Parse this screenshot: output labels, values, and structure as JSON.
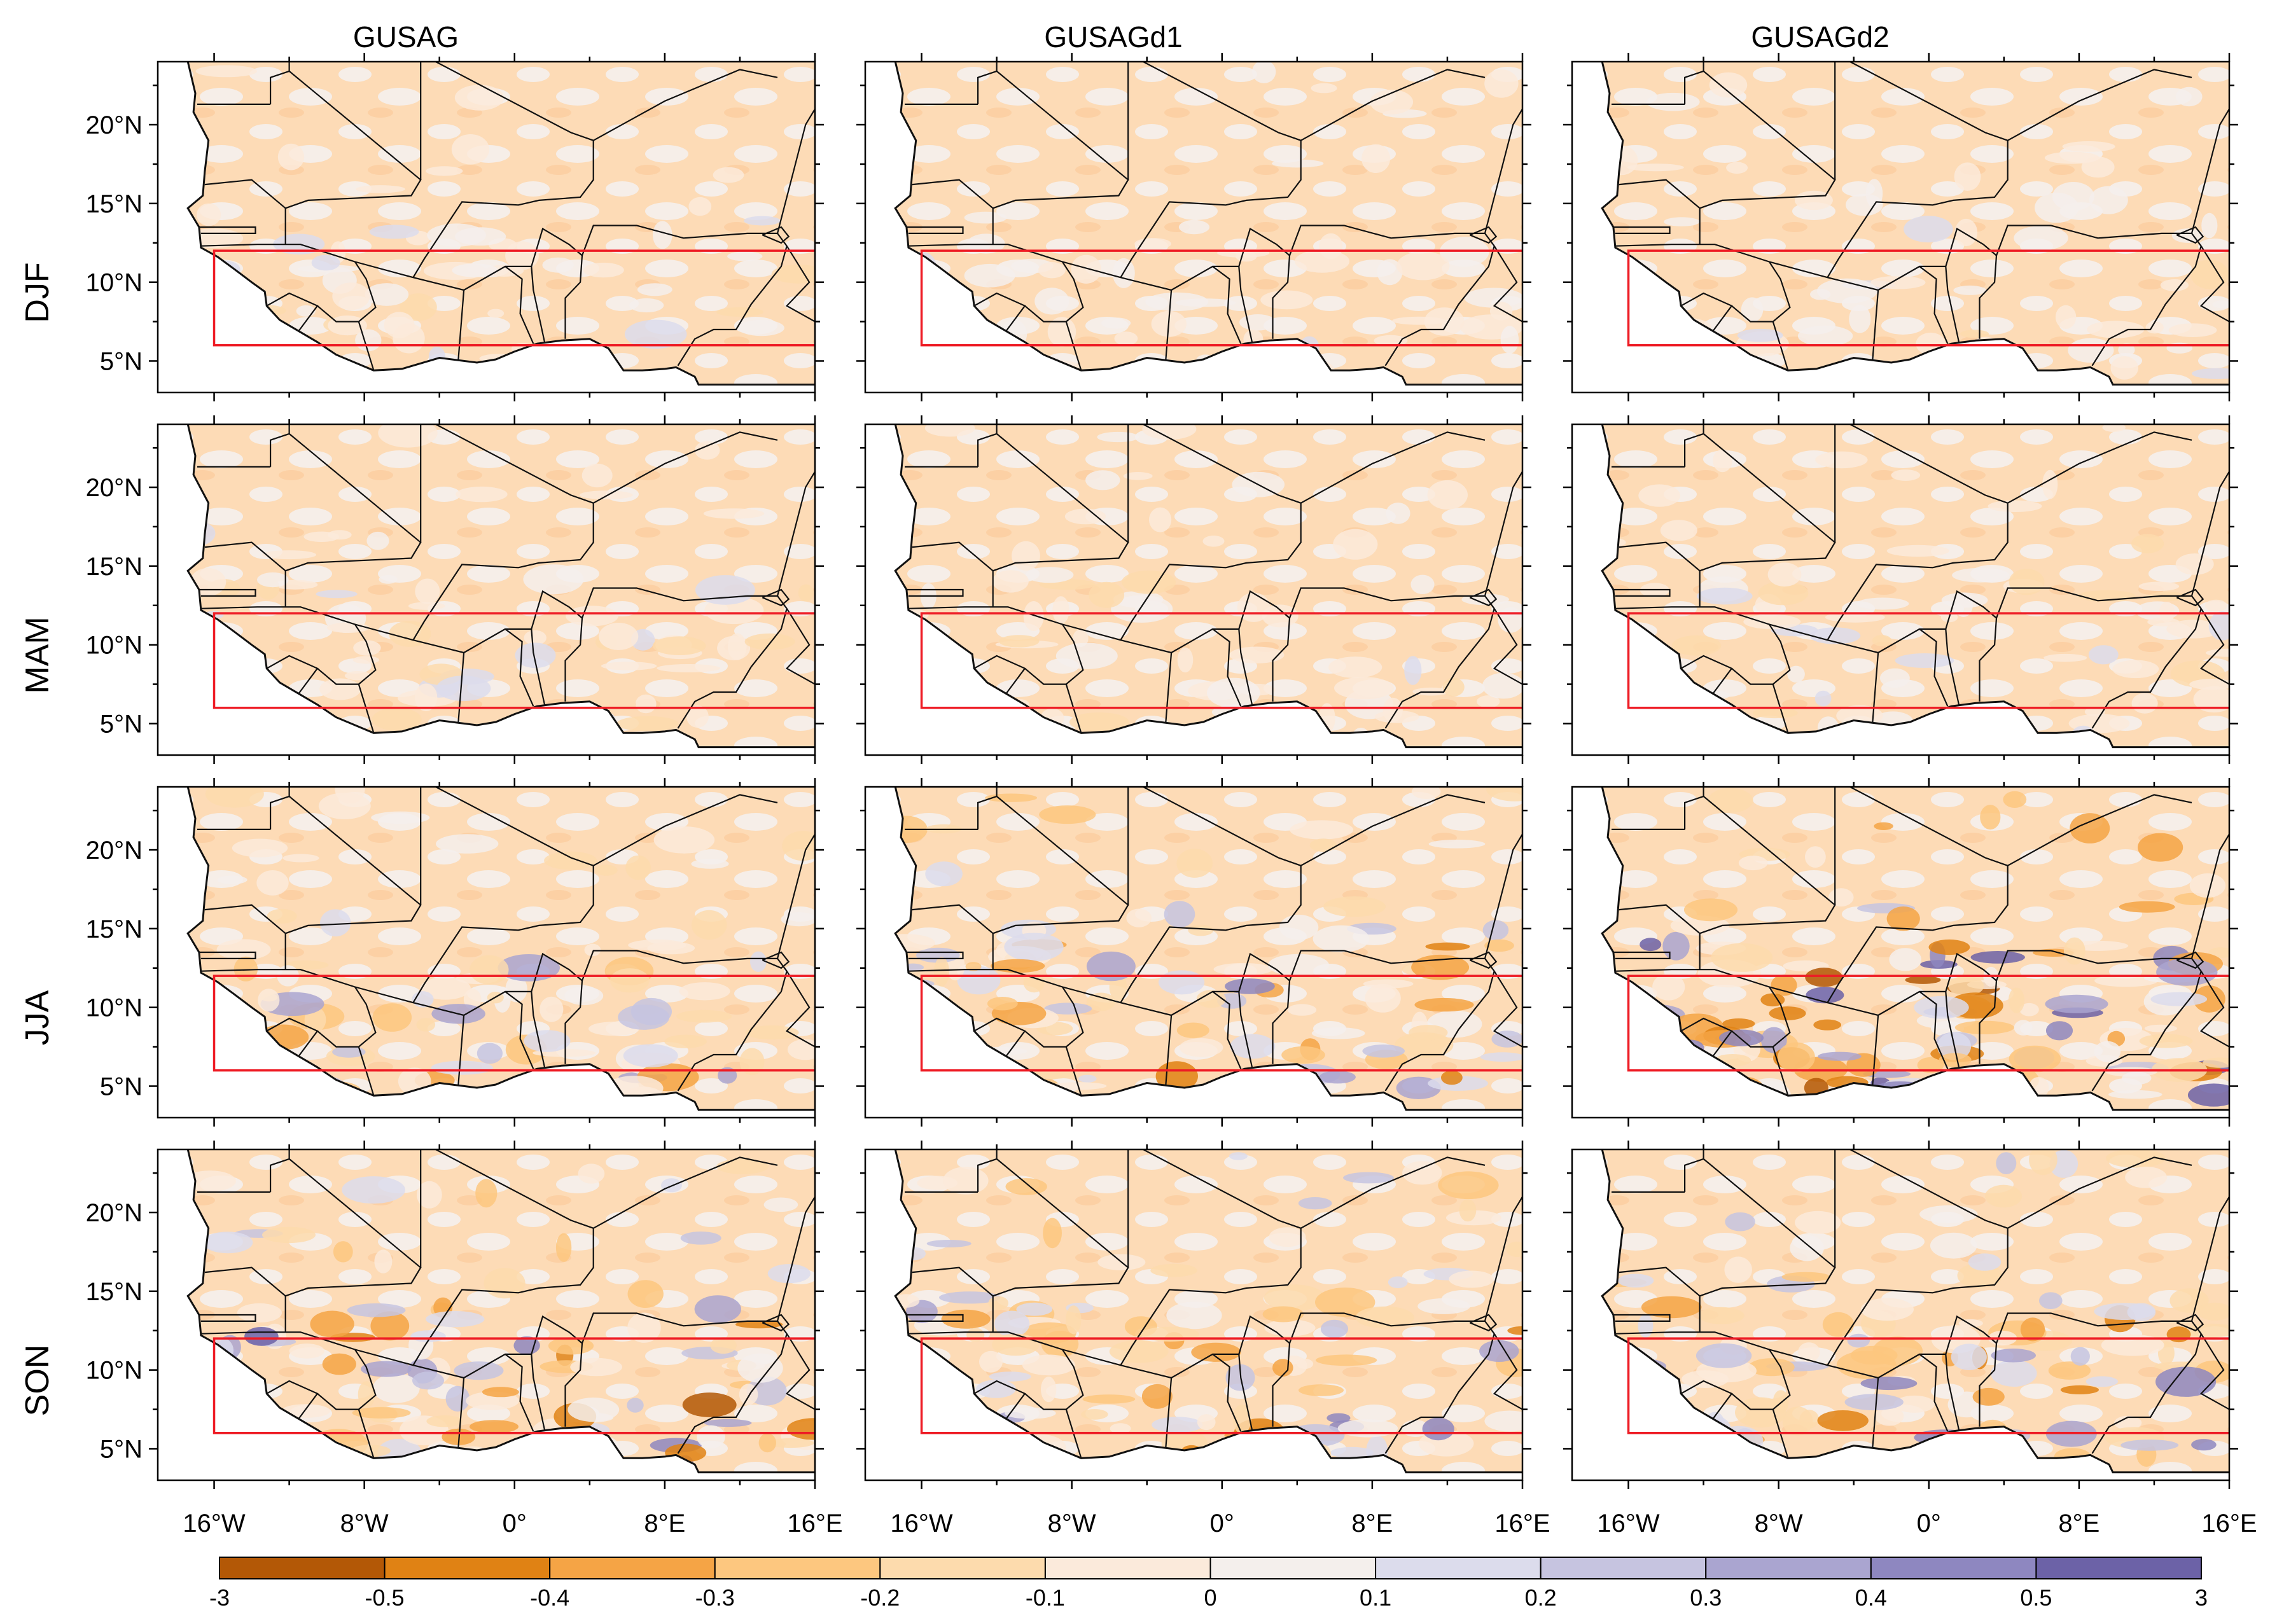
{
  "columns": [
    "GUSAG",
    "GUSAGd1",
    "GUSAGd2"
  ],
  "rows": [
    "DJF",
    "MAM",
    "JJA",
    "SON"
  ],
  "lat_ticks": [
    "20°N",
    "15°N",
    "10°N",
    "5°N"
  ],
  "lon_ticks": [
    "16°W",
    "8°W",
    "0°",
    "8°E",
    "16°E"
  ],
  "colorbar": {
    "labels": [
      "-3",
      "-0.5",
      "-0.4",
      "-0.3",
      "-0.2",
      "-0.1",
      "0",
      "0.1",
      "0.2",
      "0.3",
      "0.4",
      "0.5",
      "3"
    ],
    "colors": [
      "#b35806",
      "#e08214",
      "#f5a445",
      "#fdc77f",
      "#fddbad",
      "#fbeadb",
      "#f4efec",
      "#dcdcec",
      "#c6c4e0",
      "#aaa5d0",
      "#8e87c0",
      "#6c62a7"
    ]
  },
  "map": {
    "lat_range": [
      3,
      24
    ],
    "lon_range": [
      -19,
      16
    ],
    "analysis_box": {
      "lon": [
        -16,
        16
      ],
      "lat": [
        6,
        12
      ]
    },
    "box_color": "#ee1c25",
    "ocean_color": "#ffffff",
    "border_color": "#111111"
  }
}
